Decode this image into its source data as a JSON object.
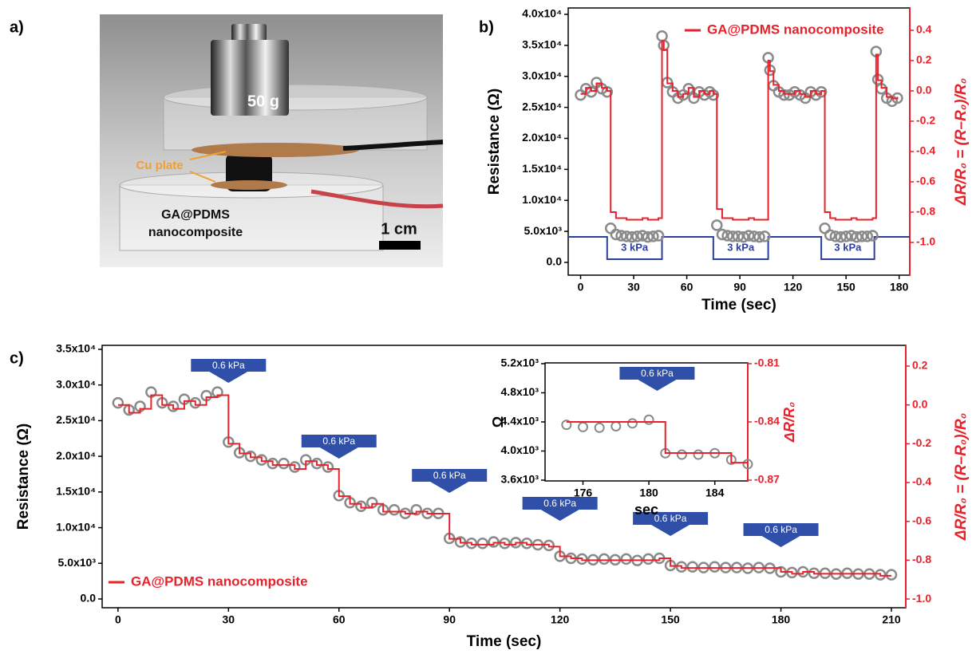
{
  "panel_labels": [
    "a)",
    "b)",
    "c)"
  ],
  "photo": {
    "weight": "50 g",
    "cu_label": "Cu plate",
    "sample_label": [
      "GA@PDMS",
      "nanocomposite"
    ],
    "scale_bar": "1 cm"
  },
  "chart_data": [
    {
      "type": "line",
      "xlabel": "Time (sec)",
      "ylabel": "Resistance (Ω)",
      "y2label": "ΔR/R₀ = (R–R₀)/R₀",
      "legend": "upper right",
      "step": true,
      "xlim": [
        -7,
        186
      ],
      "xticks": [
        0,
        30,
        60,
        90,
        120,
        150,
        180
      ],
      "ylim": [
        -2060,
        41030
      ],
      "yticks": [
        {
          "value": 0,
          "label": "0.0"
        },
        {
          "value": 5000,
          "label": "5.0x10³"
        },
        {
          "value": 10000,
          "label": "1.0x10⁴"
        },
        {
          "value": 15000,
          "label": "1.5x10⁴"
        },
        {
          "value": 20000,
          "label": "2.0x10⁴"
        },
        {
          "value": 25000,
          "label": "2.5x10⁴"
        },
        {
          "value": 30000,
          "label": "3.0x10⁴"
        },
        {
          "value": 35000,
          "label": "3.5x10⁴"
        },
        {
          "value": 40000,
          "label": "4.0x10⁴"
        }
      ],
      "y2lim": [
        -1.216,
        0.547
      ],
      "y2ticks": [
        0.4,
        0.2,
        {
          "value": 0,
          "label": "0.0"
        },
        -0.2,
        -0.4,
        -0.6,
        -0.8,
        {
          "value": -1,
          "label": "-1.0"
        }
      ],
      "x": [
        0,
        3,
        6,
        9,
        12,
        15,
        17,
        20,
        23,
        26,
        29,
        32,
        35,
        38,
        41,
        44,
        46,
        47,
        49,
        52,
        55,
        58,
        61,
        64,
        67,
        70,
        73,
        75,
        77,
        80,
        83,
        86,
        89,
        92,
        95,
        98,
        101,
        104,
        106,
        107,
        109,
        112,
        115,
        118,
        121,
        124,
        127,
        130,
        133,
        136,
        138,
        141,
        144,
        147,
        150,
        153,
        156,
        159,
        162,
        165,
        167,
        168,
        170,
        173,
        176,
        179
      ],
      "series": [
        {
          "marker": "open-circle",
          "color": "#8a8a8a",
          "values": [
            27000,
            28000,
            27500,
            29000,
            28000,
            27500,
            5500,
            4500,
            4300,
            4200,
            4100,
            4200,
            4300,
            4100,
            4200,
            4300,
            36500,
            35000,
            29000,
            27500,
            26500,
            27000,
            28000,
            26500,
            27500,
            27000,
            27500,
            27000,
            6000,
            4500,
            4300,
            4200,
            4200,
            4100,
            4300,
            4200,
            4100,
            4200,
            33000,
            31000,
            28500,
            27500,
            27000,
            27000,
            27500,
            27000,
            26500,
            27500,
            27000,
            27500,
            5500,
            4400,
            4200,
            4100,
            4200,
            4300,
            4100,
            4200,
            4200,
            4300,
            34000,
            29500,
            28000,
            26500,
            26000,
            26500
          ]
        },
        {
          "name": "GA@PDMS nanocomposite",
          "color": "#e8212a",
          "axis": "y2",
          "values": [
            -0.02,
            0.02,
            0,
            0.05,
            0.02,
            0,
            -0.8,
            -0.84,
            -0.84,
            -0.85,
            -0.85,
            -0.85,
            -0.84,
            -0.85,
            -0.85,
            -0.84,
            0.33,
            0.27,
            0.05,
            0,
            -0.04,
            -0.02,
            0.02,
            -0.04,
            0,
            -0.02,
            0,
            -0.02,
            -0.78,
            -0.84,
            -0.84,
            -0.85,
            -0.85,
            -0.85,
            -0.84,
            -0.85,
            -0.85,
            -0.85,
            0.2,
            0.13,
            0.04,
            0,
            -0.02,
            -0.02,
            0,
            -0.02,
            -0.04,
            0,
            -0.02,
            0,
            -0.8,
            -0.84,
            -0.85,
            -0.85,
            -0.85,
            -0.84,
            -0.85,
            -0.85,
            -0.85,
            -0.84,
            0.24,
            0.07,
            0.02,
            -0.04,
            -0.05,
            -0.04
          ]
        }
      ],
      "annotations": [
        {
          "text": "3 kPa",
          "start": 15,
          "end": 46
        },
        {
          "text": "3 kPa",
          "start": 75,
          "end": 106
        },
        {
          "text": "3 kPa",
          "start": 136,
          "end": 166
        }
      ]
    },
    {
      "type": "line",
      "xlabel": "Time (sec)",
      "ylabel": "Resistance (Ω)",
      "y2label": "ΔR/R₀ = (R–R₀)/R₀",
      "legend": "lower left",
      "step": true,
      "xlim": [
        -4.3,
        213.9
      ],
      "xticks": [
        0,
        30,
        60,
        90,
        120,
        150,
        180,
        210
      ],
      "ylim": [
        -1230,
        35560
      ],
      "yticks": [
        {
          "value": 0,
          "label": "0.0"
        },
        {
          "value": 5000,
          "label": "5.0x10³"
        },
        {
          "value": 10000,
          "label": "1.0x10⁴"
        },
        {
          "value": 15000,
          "label": "1.5x10⁴"
        },
        {
          "value": 20000,
          "label": "2.0x10⁴"
        },
        {
          "value": 25000,
          "label": "2.5x10⁴"
        },
        {
          "value": 30000,
          "label": "3.0x10⁴"
        },
        {
          "value": 35000,
          "label": "3.5x10⁴"
        }
      ],
      "y2lim": [
        -1.045,
        0.307
      ],
      "y2ticks": [
        0.2,
        {
          "value": 0,
          "label": "0.0"
        },
        -0.2,
        -0.4,
        -0.6,
        -0.8,
        {
          "value": -1,
          "label": "-1.0"
        }
      ],
      "x": [
        0,
        3,
        6,
        9,
        12,
        15,
        18,
        21,
        24,
        27,
        30,
        33,
        36,
        39,
        42,
        45,
        48,
        51,
        54,
        57,
        60,
        63,
        66,
        69,
        72,
        75,
        78,
        81,
        84,
        87,
        90,
        93,
        96,
        99,
        102,
        105,
        108,
        111,
        114,
        117,
        120,
        123,
        126,
        129,
        132,
        135,
        138,
        141,
        144,
        147,
        150,
        153,
        156,
        159,
        162,
        165,
        168,
        171,
        174,
        177,
        180,
        183,
        186,
        189,
        192,
        195,
        198,
        201,
        204,
        207,
        210
      ],
      "series": [
        {
          "marker": "open-circle",
          "color": "#8a8a8a",
          "values": [
            27500,
            26500,
            27000,
            29000,
            27500,
            27000,
            28000,
            27500,
            28500,
            29000,
            22000,
            20500,
            20000,
            19500,
            19000,
            19000,
            18500,
            19500,
            19000,
            18500,
            14500,
            13500,
            13000,
            13500,
            12500,
            12500,
            12000,
            12500,
            12000,
            12000,
            8500,
            8000,
            7800,
            7800,
            8000,
            7800,
            7900,
            7800,
            7600,
            7500,
            6000,
            5700,
            5600,
            5500,
            5600,
            5500,
            5600,
            5400,
            5600,
            5700,
            4700,
            4500,
            4500,
            4400,
            4500,
            4400,
            4400,
            4300,
            4400,
            4300,
            3800,
            3700,
            3800,
            3600,
            3600,
            3500,
            3600,
            3500,
            3500,
            3400,
            3400
          ]
        },
        {
          "name": "GA@PDMS nanocomposite",
          "color": "#e8212a",
          "axis": "y2",
          "values": [
            0,
            -0.04,
            -0.02,
            0.05,
            0,
            -0.02,
            0.02,
            0,
            0.04,
            0.05,
            -0.2,
            -0.25,
            -0.27,
            -0.29,
            -0.31,
            -0.31,
            -0.33,
            -0.29,
            -0.31,
            -0.33,
            -0.47,
            -0.51,
            -0.53,
            -0.51,
            -0.55,
            -0.55,
            -0.56,
            -0.55,
            -0.56,
            -0.56,
            -0.69,
            -0.71,
            -0.72,
            -0.72,
            -0.71,
            -0.72,
            -0.71,
            -0.72,
            -0.72,
            -0.73,
            -0.78,
            -0.79,
            -0.8,
            -0.8,
            -0.8,
            -0.8,
            -0.8,
            -0.8,
            -0.8,
            -0.79,
            -0.83,
            -0.84,
            -0.84,
            -0.84,
            -0.84,
            -0.84,
            -0.84,
            -0.84,
            -0.84,
            -0.84,
            -0.86,
            -0.87,
            -0.86,
            -0.87,
            -0.87,
            -0.87,
            -0.87,
            -0.87,
            -0.87,
            -0.88,
            -0.88
          ]
        }
      ],
      "annotations": [
        {
          "text": "0.6 kPa",
          "x": 30
        },
        {
          "text": "0.6 kPa",
          "x": 60
        },
        {
          "text": "0.6 kPa",
          "x": 90
        },
        {
          "text": "0.6 kPa",
          "x": 120
        },
        {
          "text": "0.6 kPa",
          "x": 150
        },
        {
          "text": "0.6 kPa",
          "x": 180
        }
      ]
    },
    {
      "type": "line",
      "xlabel": "sec",
      "ylabel": "Ω",
      "y2label": "ΔR/R₀",
      "step": true,
      "xlim": [
        173.7,
        186
      ],
      "xticks": [
        176,
        180,
        184
      ],
      "ylim": [
        3589,
        5211
      ],
      "yticks": [
        {
          "value": 3600,
          "label": "3.6x10³"
        },
        {
          "value": 4000,
          "label": "4.0x10³"
        },
        {
          "value": 4400,
          "label": "4.4x10³"
        },
        {
          "value": 4800,
          "label": "4.8x10³"
        },
        {
          "value": 5200,
          "label": "5.2x10³"
        }
      ],
      "y2lim": [
        -0.8704,
        -0.8096
      ],
      "y2ticks": [
        -0.87,
        -0.84,
        -0.81
      ],
      "x": [
        175,
        176,
        177,
        178,
        179,
        180,
        181,
        182,
        183,
        184,
        185,
        186
      ],
      "series": [
        {
          "marker": "open-circle",
          "color": "#8a8a8a",
          "values": [
            4360,
            4330,
            4320,
            4340,
            4380,
            4430,
            3970,
            3950,
            3950,
            3970,
            3880,
            3820
          ]
        },
        {
          "color": "#e8212a",
          "axis": "y2",
          "values": [
            -0.84,
            -0.84,
            -0.84,
            -0.84,
            -0.84,
            -0.84,
            -0.856,
            -0.856,
            -0.856,
            -0.856,
            -0.861,
            -0.861
          ]
        }
      ],
      "annotations": [
        {
          "text": "0.6 kPa",
          "x": 180.5
        }
      ]
    }
  ]
}
